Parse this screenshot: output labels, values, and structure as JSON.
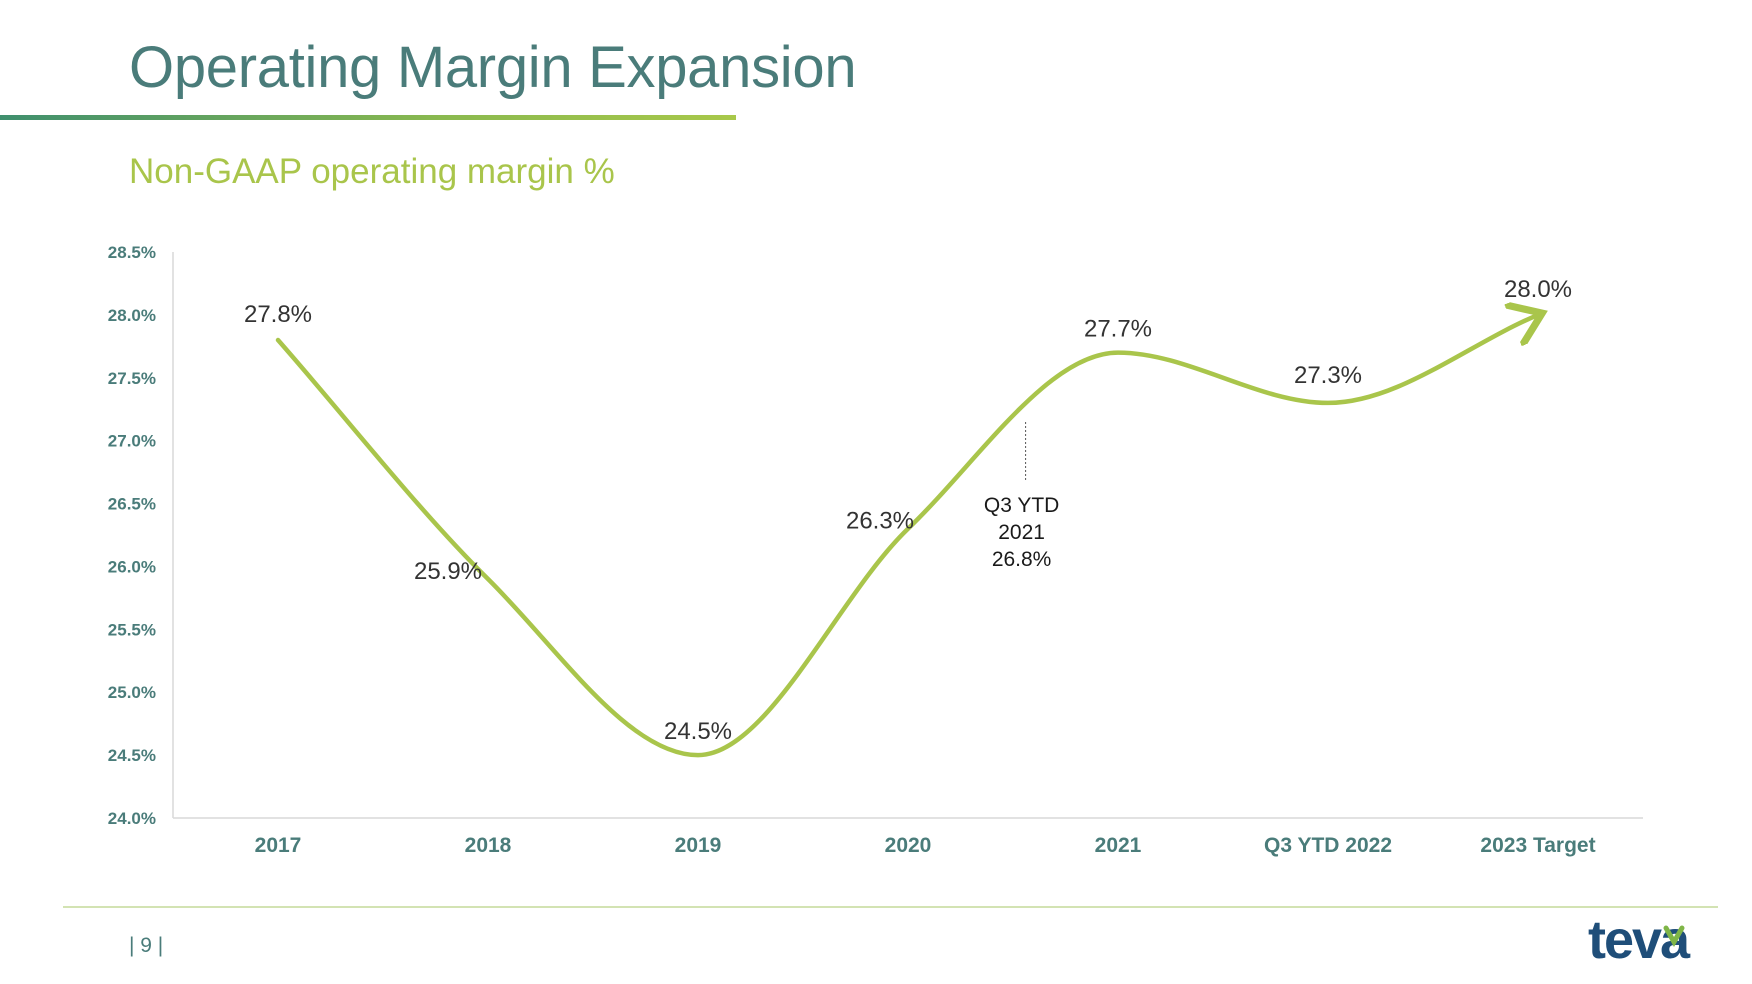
{
  "slide": {
    "title": "Operating Margin Expansion",
    "subtitle": "Non-GAAP operating margin %",
    "page_number": "| 9 |",
    "logo_text": "teva",
    "colors": {
      "title": "#4a7c7a",
      "subtitle": "#a9c54b",
      "line": "#a9c54b",
      "axis_text": "#4a7c7a",
      "logo": "#1f4e79"
    }
  },
  "chart_data": {
    "type": "line",
    "categories": [
      "2017",
      "2018",
      "2019",
      "2020",
      "2021",
      "Q3 YTD 2022",
      "2023 Target"
    ],
    "series": [
      {
        "values": [
          27.8,
          25.9,
          24.5,
          26.3,
          27.7,
          27.3,
          28.0
        ],
        "data_labels": [
          "27.8%",
          "25.9%",
          "24.5%",
          "26.3%",
          "27.7%",
          "27.3%",
          "28.0%"
        ]
      }
    ],
    "yticks": [
      "24.0%",
      "24.5%",
      "25.0%",
      "25.5%",
      "26.0%",
      "26.5%",
      "27.0%",
      "27.5%",
      "28.0%",
      "28.5%"
    ],
    "ylim": [
      24.0,
      28.5
    ],
    "smooth": true,
    "arrow_end": true,
    "grid": false,
    "legend": "none",
    "annotations": [
      {
        "lines": [
          "Q3 YTD",
          "2021",
          "26.8%"
        ],
        "x_between": [
          "2020",
          "2021"
        ],
        "value": 26.8
      }
    ]
  }
}
